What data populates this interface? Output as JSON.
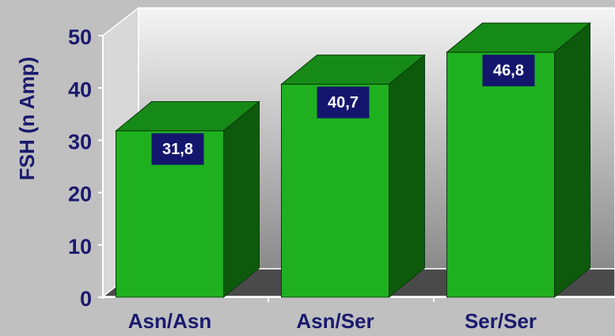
{
  "chart_data": {
    "type": "bar3d",
    "y_label": "FSH (n Amp)",
    "categories": [
      "Asn/Asn",
      "Asn/Ser",
      "Ser/Ser"
    ],
    "values": [
      31.8,
      40.7,
      46.8
    ],
    "value_labels": [
      "31,8",
      "40,7",
      "46,8"
    ],
    "color": "#1fb01f",
    "ylim": [
      0,
      50
    ],
    "yticks": [
      0,
      10,
      20,
      30,
      40,
      50
    ]
  }
}
